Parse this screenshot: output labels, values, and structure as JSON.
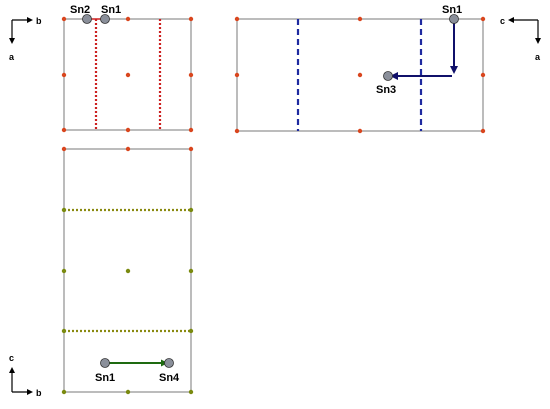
{
  "colors": {
    "frame": "#7a7a7a",
    "node_red": "#d9461e",
    "node_olive": "#7a8a10",
    "plane_red": "#cc2020",
    "plane_blue": "#1e2aa0",
    "plane_olive": "#8a8a10",
    "arrow_navy": "#10106a",
    "arrow_green": "#1e6a10",
    "atom": "#8a8f9a"
  },
  "panels": {
    "top_left": {
      "axis_horizontal": "b",
      "axis_vertical": "a",
      "atoms": [
        "Sn2",
        "Sn1"
      ]
    },
    "top_right": {
      "axis_horizontal": "c",
      "axis_vertical": "a",
      "atoms": [
        "Sn1",
        "Sn3"
      ]
    },
    "bottom_left": {
      "axis_horizontal": "b",
      "axis_vertical": "c",
      "atoms": [
        "Sn1",
        "Sn4"
      ]
    }
  }
}
